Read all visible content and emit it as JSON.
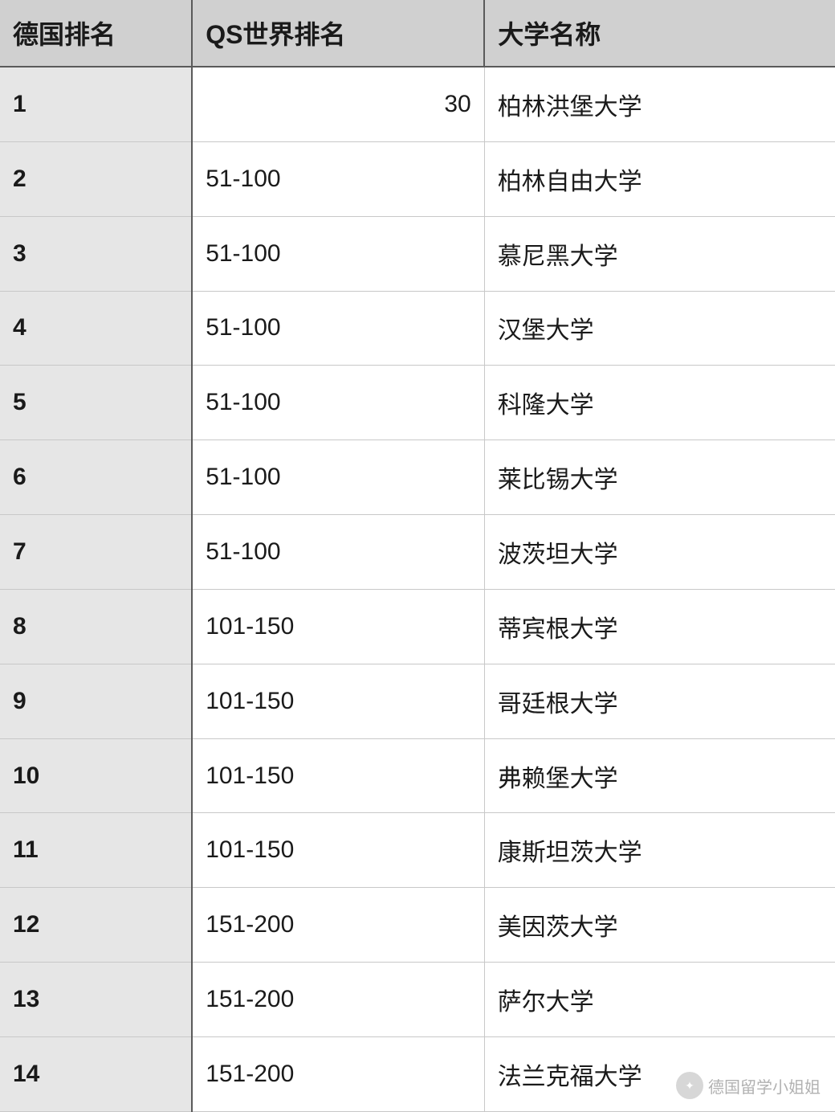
{
  "table": {
    "columns": [
      "德国排名",
      "QS世界排名",
      "大学名称"
    ],
    "column_widths_pct": [
      23,
      35,
      42
    ],
    "header_bg": "#d0d0d0",
    "rank_col_bg": "#e6e6e6",
    "data_bg": "#ffffff",
    "border_color_heavy": "#5a5a5a",
    "border_color_light": "#c8c8c8",
    "header_fontsize_pt": 24,
    "cell_fontsize_pt": 22,
    "rows": [
      {
        "rank": "1",
        "qs": "30",
        "name": "柏林洪堡大学",
        "qs_align": "right"
      },
      {
        "rank": "2",
        "qs": "51-100",
        "name": "柏林自由大学",
        "qs_align": "left"
      },
      {
        "rank": "3",
        "qs": "51-100",
        "name": "慕尼黑大学",
        "qs_align": "left"
      },
      {
        "rank": "4",
        "qs": "51-100",
        "name": "汉堡大学",
        "qs_align": "left"
      },
      {
        "rank": "5",
        "qs": "51-100",
        "name": "科隆大学",
        "qs_align": "left"
      },
      {
        "rank": "6",
        "qs": "51-100",
        "name": "莱比锡大学",
        "qs_align": "left"
      },
      {
        "rank": "7",
        "qs": "51-100",
        "name": "波茨坦大学",
        "qs_align": "left"
      },
      {
        "rank": "8",
        "qs": "101-150",
        "name": "蒂宾根大学",
        "qs_align": "left"
      },
      {
        "rank": "9",
        "qs": "101-150",
        "name": "哥廷根大学",
        "qs_align": "left"
      },
      {
        "rank": "10",
        "qs": "101-150",
        "name": "弗赖堡大学",
        "qs_align": "left"
      },
      {
        "rank": "11",
        "qs": "101-150",
        "name": "康斯坦茨大学",
        "qs_align": "left"
      },
      {
        "rank": "12",
        "qs": "151-200",
        "name": "美因茨大学",
        "qs_align": "left"
      },
      {
        "rank": "13",
        "qs": "151-200",
        "name": "萨尔大学",
        "qs_align": "left"
      },
      {
        "rank": "14",
        "qs": "151-200",
        "name": "法兰克福大学",
        "qs_align": "left"
      }
    ]
  },
  "watermark": {
    "text": "德国留学小姐姐",
    "color": "#666666",
    "icon_bg": "#b0b0b0"
  }
}
